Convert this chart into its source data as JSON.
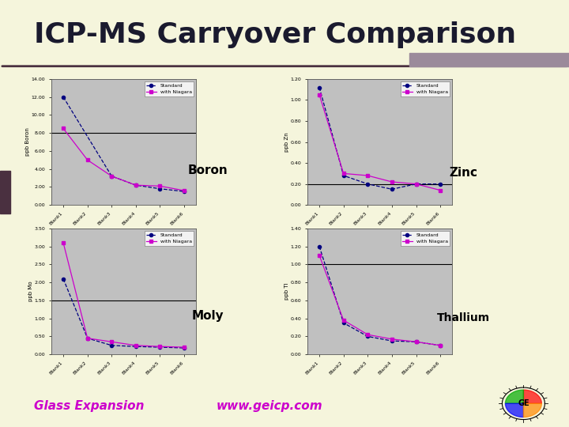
{
  "title": "ICP-MS Carryover Comparison",
  "title_fontsize": 26,
  "title_color": "#1a1a2e",
  "bg_color": "#f5f5dc",
  "plot_bg_color": "#c0c0c0",
  "footer_left": "Glass Expansion",
  "footer_right": "www.geicp.com",
  "footer_color": "#cc00cc",
  "blanks": [
    "Blank1",
    "Blank2",
    "Blank3",
    "Blank4",
    "Blank5",
    "Blank6"
  ],
  "boron": {
    "label": "Boron",
    "ylabel": "ppb Boron",
    "standard": [
      12.0,
      null,
      3.2,
      2.2,
      1.8,
      1.5
    ],
    "with_niagara": [
      8.5,
      5.0,
      3.2,
      2.2,
      2.1,
      1.6
    ],
    "ylim": [
      0,
      14
    ],
    "ytick_vals": [
      0.0,
      2.0,
      4.0,
      6.0,
      8.0,
      10.0,
      12.0,
      14.0
    ],
    "ytick_labels": [
      "0.00",
      "2.00",
      "4.00",
      "6.00",
      "8.00",
      "10.00",
      "12.00",
      "14.00"
    ],
    "hline": 8.0
  },
  "zinc": {
    "label": "Zinc",
    "ylabel": "ppb Zn",
    "standard": [
      1.12,
      0.28,
      0.2,
      0.15,
      0.2,
      0.2
    ],
    "with_niagara": [
      1.05,
      0.3,
      0.28,
      0.22,
      0.2,
      0.14
    ],
    "ylim": [
      0.0,
      1.2
    ],
    "ytick_vals": [
      0.0,
      0.2,
      0.4,
      0.6,
      0.8,
      1.0,
      1.2
    ],
    "ytick_labels": [
      "0.00",
      "0.20",
      "0.40",
      "0.60",
      "0.80",
      "1.00",
      "1.20"
    ],
    "hline": 0.2
  },
  "moly": {
    "label": "Moly",
    "ylabel": "ppb Mo",
    "standard": [
      2.1,
      0.45,
      0.25,
      0.22,
      0.2,
      0.18
    ],
    "with_niagara": [
      3.1,
      0.45,
      0.35,
      0.25,
      0.22,
      0.2
    ],
    "ylim": [
      0.0,
      3.5
    ],
    "ytick_vals": [
      0.0,
      0.5,
      1.0,
      1.5,
      2.0,
      2.5,
      3.0,
      3.5
    ],
    "ytick_labels": [
      "0.00",
      "0.50",
      "1.00",
      "1.50",
      "2.00",
      "2.50",
      "3.00",
      "3.50"
    ],
    "hline": 1.5
  },
  "thallium": {
    "label": "Thallium",
    "ylabel": "ppb Tl",
    "standard": [
      1.2,
      0.35,
      0.2,
      0.15,
      0.14,
      0.1
    ],
    "with_niagara": [
      1.1,
      0.38,
      0.22,
      0.17,
      0.14,
      0.1
    ],
    "ylim": [
      0.0,
      1.4
    ],
    "ytick_vals": [
      0.0,
      0.2,
      0.4,
      0.6,
      0.8,
      1.0,
      1.2,
      1.4
    ],
    "ytick_labels": [
      "0.00",
      "0.20",
      "0.40",
      "0.60",
      "0.80",
      "1.00",
      "1.20",
      "1.40"
    ],
    "hline": 1.0
  },
  "standard_color": "#000080",
  "niagara_color": "#cc00cc",
  "separator_color": "#4a3040",
  "accent_color": "#9b8a9b",
  "chart_border_color": "#888888"
}
